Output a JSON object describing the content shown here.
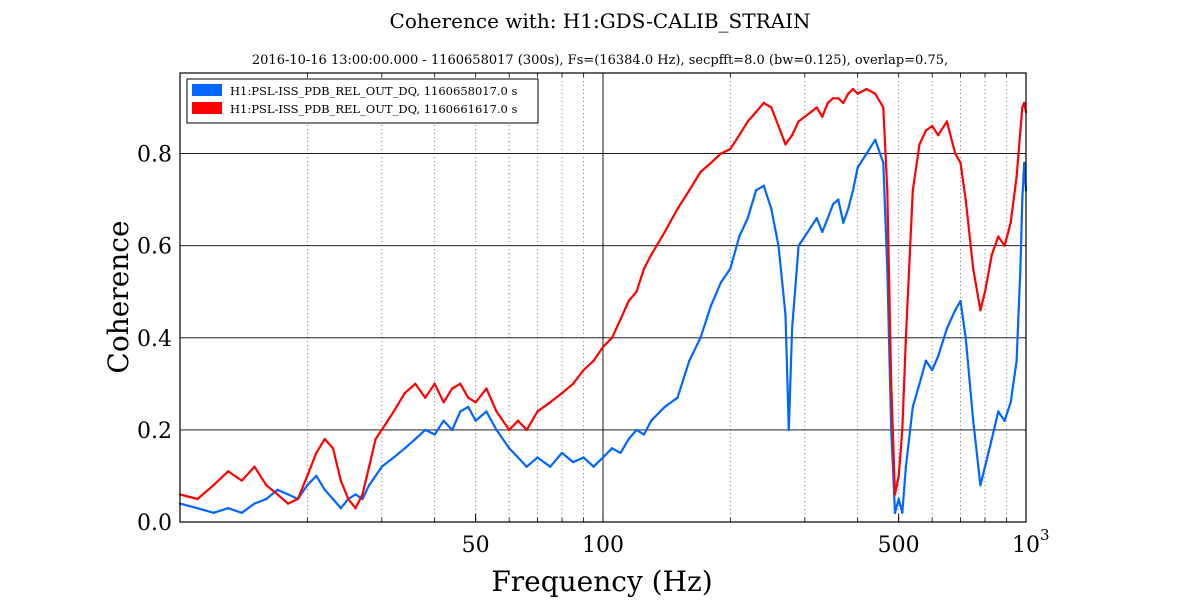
{
  "chart_data": {
    "type": "line",
    "title": "Coherence with: H1:GDS-CALIB_STRAIN",
    "subtitle": "2016-10-16 13:00:00.000 - 1160658017 (300s), Fs=(16384.0 Hz), secpfft=8.0 (bw=0.125), overlap=0.75,",
    "xlabel": "Frequency (Hz)",
    "ylabel": "Coherence",
    "x_scale": "log",
    "xlim": [
      10,
      1000
    ],
    "ylim": [
      0,
      0.975
    ],
    "grid": true,
    "legend_position": "top-left",
    "x_ticks": [
      {
        "value": 50,
        "label": "50"
      },
      {
        "value": 100,
        "label": "100"
      },
      {
        "value": 500,
        "label": "500"
      },
      {
        "value": 1000,
        "label": "10",
        "exp": "3"
      }
    ],
    "y_ticks": [
      {
        "value": 0.0,
        "label": "0.0"
      },
      {
        "value": 0.2,
        "label": "0.2"
      },
      {
        "value": 0.4,
        "label": "0.4"
      },
      {
        "value": 0.6,
        "label": "0.6"
      },
      {
        "value": 0.8,
        "label": "0.8"
      }
    ],
    "series": [
      {
        "name": "H1:PSL-ISS_PDB_REL_OUT_DQ, 1160658017.0 s",
        "color": "#0066ff",
        "points": [
          [
            10,
            0.04
          ],
          [
            11,
            0.03
          ],
          [
            12,
            0.02
          ],
          [
            13,
            0.03
          ],
          [
            14,
            0.02
          ],
          [
            15,
            0.04
          ],
          [
            16,
            0.05
          ],
          [
            17,
            0.07
          ],
          [
            18,
            0.06
          ],
          [
            19,
            0.05
          ],
          [
            20,
            0.08
          ],
          [
            21,
            0.1
          ],
          [
            22,
            0.07
          ],
          [
            23,
            0.05
          ],
          [
            24,
            0.03
          ],
          [
            25,
            0.05
          ],
          [
            26,
            0.06
          ],
          [
            27,
            0.05
          ],
          [
            28,
            0.08
          ],
          [
            29,
            0.1
          ],
          [
            30,
            0.12
          ],
          [
            32,
            0.14
          ],
          [
            34,
            0.16
          ],
          [
            36,
            0.18
          ],
          [
            38,
            0.2
          ],
          [
            40,
            0.19
          ],
          [
            42,
            0.22
          ],
          [
            44,
            0.2
          ],
          [
            46,
            0.24
          ],
          [
            48,
            0.25
          ],
          [
            50,
            0.22
          ],
          [
            53,
            0.24
          ],
          [
            56,
            0.2
          ],
          [
            60,
            0.16
          ],
          [
            63,
            0.14
          ],
          [
            66,
            0.12
          ],
          [
            70,
            0.14
          ],
          [
            75,
            0.12
          ],
          [
            80,
            0.15
          ],
          [
            85,
            0.13
          ],
          [
            90,
            0.14
          ],
          [
            95,
            0.12
          ],
          [
            100,
            0.14
          ],
          [
            105,
            0.16
          ],
          [
            110,
            0.15
          ],
          [
            115,
            0.18
          ],
          [
            120,
            0.2
          ],
          [
            125,
            0.19
          ],
          [
            130,
            0.22
          ],
          [
            140,
            0.25
          ],
          [
            150,
            0.27
          ],
          [
            160,
            0.35
          ],
          [
            170,
            0.4
          ],
          [
            180,
            0.47
          ],
          [
            190,
            0.52
          ],
          [
            200,
            0.55
          ],
          [
            210,
            0.62
          ],
          [
            220,
            0.66
          ],
          [
            230,
            0.72
          ],
          [
            240,
            0.73
          ],
          [
            250,
            0.68
          ],
          [
            260,
            0.6
          ],
          [
            270,
            0.45
          ],
          [
            275,
            0.2
          ],
          [
            280,
            0.42
          ],
          [
            290,
            0.6
          ],
          [
            300,
            0.62
          ],
          [
            310,
            0.64
          ],
          [
            320,
            0.66
          ],
          [
            330,
            0.63
          ],
          [
            340,
            0.66
          ],
          [
            350,
            0.69
          ],
          [
            360,
            0.7
          ],
          [
            370,
            0.65
          ],
          [
            380,
            0.68
          ],
          [
            390,
            0.72
          ],
          [
            400,
            0.77
          ],
          [
            420,
            0.8
          ],
          [
            440,
            0.83
          ],
          [
            460,
            0.78
          ],
          [
            470,
            0.55
          ],
          [
            480,
            0.2
          ],
          [
            490,
            0.02
          ],
          [
            500,
            0.05
          ],
          [
            510,
            0.02
          ],
          [
            520,
            0.12
          ],
          [
            540,
            0.25
          ],
          [
            560,
            0.3
          ],
          [
            580,
            0.35
          ],
          [
            600,
            0.33
          ],
          [
            620,
            0.36
          ],
          [
            650,
            0.42
          ],
          [
            680,
            0.46
          ],
          [
            700,
            0.48
          ],
          [
            720,
            0.4
          ],
          [
            750,
            0.22
          ],
          [
            780,
            0.08
          ],
          [
            800,
            0.12
          ],
          [
            830,
            0.18
          ],
          [
            860,
            0.24
          ],
          [
            890,
            0.22
          ],
          [
            920,
            0.26
          ],
          [
            950,
            0.35
          ],
          [
            970,
            0.55
          ],
          [
            980,
            0.7
          ],
          [
            990,
            0.78
          ],
          [
            1000,
            0.72
          ]
        ]
      },
      {
        "name": "H1:PSL-ISS_PDB_REL_OUT_DQ, 1160661617.0 s",
        "color": "#ff0000",
        "points": [
          [
            10,
            0.06
          ],
          [
            11,
            0.05
          ],
          [
            12,
            0.08
          ],
          [
            13,
            0.11
          ],
          [
            14,
            0.09
          ],
          [
            15,
            0.12
          ],
          [
            16,
            0.08
          ],
          [
            17,
            0.06
          ],
          [
            18,
            0.04
          ],
          [
            19,
            0.05
          ],
          [
            20,
            0.1
          ],
          [
            21,
            0.15
          ],
          [
            22,
            0.18
          ],
          [
            23,
            0.16
          ],
          [
            24,
            0.09
          ],
          [
            25,
            0.05
          ],
          [
            26,
            0.03
          ],
          [
            27,
            0.06
          ],
          [
            28,
            0.12
          ],
          [
            29,
            0.18
          ],
          [
            30,
            0.2
          ],
          [
            32,
            0.24
          ],
          [
            34,
            0.28
          ],
          [
            36,
            0.3
          ],
          [
            38,
            0.27
          ],
          [
            40,
            0.3
          ],
          [
            42,
            0.26
          ],
          [
            44,
            0.29
          ],
          [
            46,
            0.3
          ],
          [
            48,
            0.27
          ],
          [
            50,
            0.26
          ],
          [
            53,
            0.29
          ],
          [
            56,
            0.24
          ],
          [
            60,
            0.2
          ],
          [
            63,
            0.22
          ],
          [
            66,
            0.2
          ],
          [
            70,
            0.24
          ],
          [
            75,
            0.26
          ],
          [
            80,
            0.28
          ],
          [
            85,
            0.3
          ],
          [
            90,
            0.33
          ],
          [
            95,
            0.35
          ],
          [
            100,
            0.38
          ],
          [
            105,
            0.4
          ],
          [
            110,
            0.44
          ],
          [
            115,
            0.48
          ],
          [
            120,
            0.5
          ],
          [
            125,
            0.55
          ],
          [
            130,
            0.58
          ],
          [
            140,
            0.63
          ],
          [
            150,
            0.68
          ],
          [
            160,
            0.72
          ],
          [
            170,
            0.76
          ],
          [
            180,
            0.78
          ],
          [
            190,
            0.8
          ],
          [
            200,
            0.81
          ],
          [
            210,
            0.84
          ],
          [
            220,
            0.87
          ],
          [
            230,
            0.89
          ],
          [
            240,
            0.91
          ],
          [
            250,
            0.9
          ],
          [
            260,
            0.86
          ],
          [
            270,
            0.82
          ],
          [
            280,
            0.84
          ],
          [
            290,
            0.87
          ],
          [
            300,
            0.88
          ],
          [
            310,
            0.89
          ],
          [
            320,
            0.9
          ],
          [
            330,
            0.88
          ],
          [
            340,
            0.91
          ],
          [
            350,
            0.92
          ],
          [
            360,
            0.92
          ],
          [
            370,
            0.91
          ],
          [
            380,
            0.93
          ],
          [
            390,
            0.94
          ],
          [
            400,
            0.93
          ],
          [
            420,
            0.94
          ],
          [
            440,
            0.93
          ],
          [
            460,
            0.9
          ],
          [
            470,
            0.72
          ],
          [
            480,
            0.3
          ],
          [
            490,
            0.06
          ],
          [
            500,
            0.1
          ],
          [
            510,
            0.2
          ],
          [
            520,
            0.4
          ],
          [
            540,
            0.72
          ],
          [
            560,
            0.82
          ],
          [
            580,
            0.85
          ],
          [
            600,
            0.86
          ],
          [
            620,
            0.84
          ],
          [
            650,
            0.87
          ],
          [
            680,
            0.8
          ],
          [
            700,
            0.78
          ],
          [
            720,
            0.7
          ],
          [
            750,
            0.55
          ],
          [
            780,
            0.46
          ],
          [
            800,
            0.5
          ],
          [
            830,
            0.58
          ],
          [
            860,
            0.62
          ],
          [
            890,
            0.6
          ],
          [
            920,
            0.65
          ],
          [
            950,
            0.75
          ],
          [
            970,
            0.85
          ],
          [
            980,
            0.9
          ],
          [
            990,
            0.91
          ],
          [
            1000,
            0.89
          ]
        ]
      }
    ]
  }
}
